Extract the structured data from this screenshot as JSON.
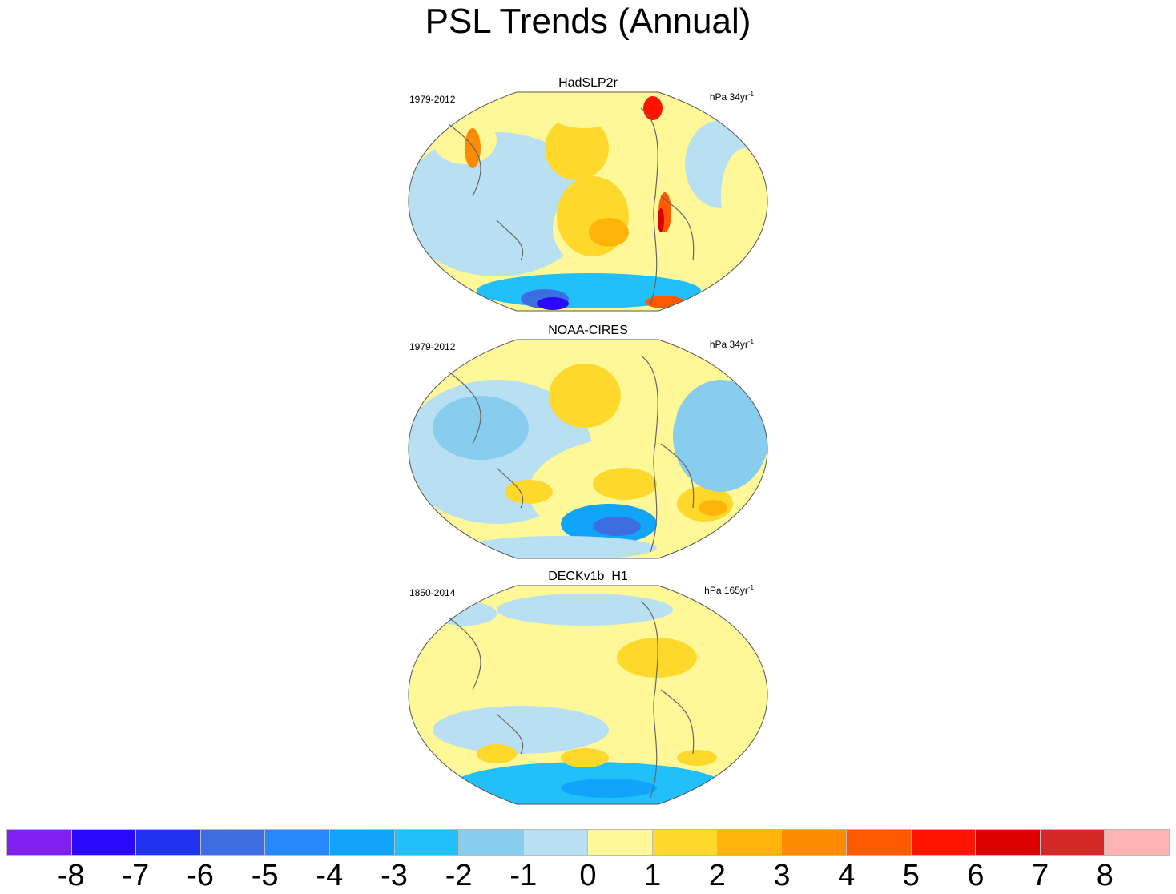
{
  "title": "PSL Trends (Annual)",
  "panels": [
    {
      "name": "HadSLP2r",
      "period": "1979-2012",
      "units": "hPa 34yr",
      "units_exp": "-1"
    },
    {
      "name": "NOAA-CIRES",
      "period": "1979-2012",
      "units": "hPa 34yr",
      "units_exp": "-1"
    },
    {
      "name": "DECKv1b_H1",
      "period": "1850-2014",
      "units": "hPa 165yr",
      "units_exp": "-1"
    }
  ],
  "colorbar": {
    "labels": [
      "-8",
      "-7",
      "-6",
      "-5",
      "-4",
      "-3",
      "-2",
      "-1",
      "0",
      "1",
      "2",
      "3",
      "4",
      "5",
      "6",
      "7",
      "8"
    ],
    "colors": [
      "#8020f0",
      "#2a0afa",
      "#1e32f0",
      "#3c6ee0",
      "#2888fa",
      "#10a5fa",
      "#22c0fa",
      "#88ccee",
      "#b8e0f2",
      "#fff898",
      "#ffd82c",
      "#ffb40a",
      "#ff8c00",
      "#ff5a00",
      "#ff1400",
      "#dc0000",
      "#d22828",
      "#ffb4b4"
    ]
  }
}
